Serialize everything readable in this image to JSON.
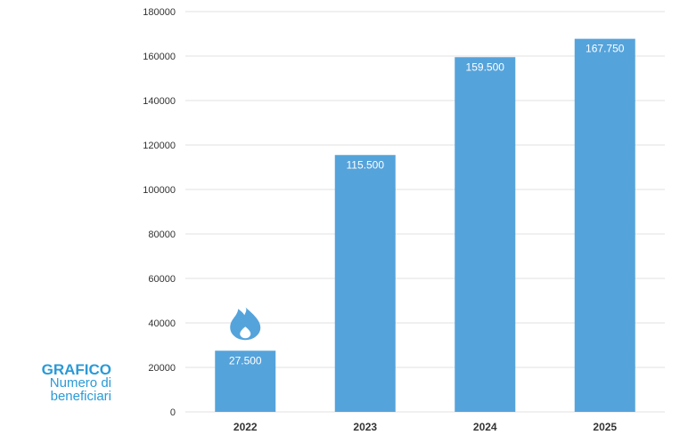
{
  "side_label": {
    "title": "GRAFICO",
    "subtitle_line1": "Numero di",
    "subtitle_line2": "beneficiari"
  },
  "colors": {
    "bar": "#55a3db",
    "label_accent": "#2b9ad6",
    "grid": "#e0e0e0",
    "tick_text": "#333333",
    "data_label_text": "#ffffff"
  },
  "icons": {
    "first_bar_marker": "flame-icon"
  },
  "chart_data": {
    "type": "bar",
    "categories": [
      "2022",
      "2023",
      "2024",
      "2025"
    ],
    "values": [
      27500,
      115500,
      159500,
      167750
    ],
    "data_labels": [
      "27.500",
      "115.500",
      "159.500",
      "167.750"
    ],
    "ylim": [
      0,
      180000
    ],
    "yticks": [
      0,
      20000,
      40000,
      60000,
      80000,
      100000,
      120000,
      140000,
      160000,
      180000
    ],
    "ytick_labels": [
      "0",
      "20000",
      "40000",
      "60000",
      "80000",
      "100000",
      "120000",
      "140000",
      "160000",
      "180000"
    ],
    "grid": true,
    "legend": "none",
    "title": "",
    "xlabel": "",
    "ylabel": ""
  }
}
